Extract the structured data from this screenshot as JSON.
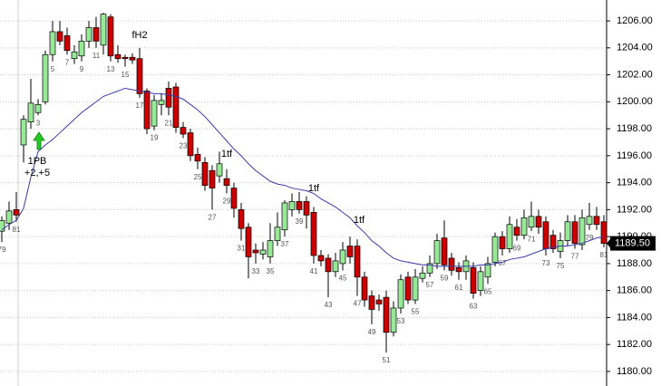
{
  "chart_data": {
    "type": "candlestick",
    "categories": [
      "79",
      null,
      "81",
      null,
      null,
      "3",
      null,
      "5",
      null,
      "7",
      null,
      "9",
      null,
      "11",
      null,
      "13",
      null,
      "15",
      null,
      "17",
      null,
      "19",
      null,
      "21",
      null,
      "23",
      null,
      "25",
      null,
      "27",
      null,
      "29",
      null,
      "31",
      null,
      "33",
      null,
      "35",
      null,
      "37",
      null,
      "39",
      null,
      "41",
      null,
      "43",
      null,
      "45",
      null,
      "47",
      null,
      "49",
      null,
      "51",
      null,
      "53",
      null,
      "55",
      null,
      "57",
      null,
      "59",
      null,
      "61",
      null,
      "63",
      null,
      "65",
      null,
      "67",
      null,
      "69",
      null,
      "71",
      null,
      "73",
      null,
      "75",
      null,
      "77",
      null,
      "79",
      null,
      "81"
    ],
    "open": [
      1190.4,
      1191.0,
      1192.0,
      1196.8,
      1198.5,
      1199.2,
      1200.0,
      1203.5,
      1205.2,
      1204.9,
      1203.2,
      1203.4,
      1204.5,
      1205.5,
      1204.2,
      1206.3,
      1203.5,
      1203.3,
      1203.3,
      1203.2,
      1200.8,
      1198.2,
      1199.8,
      1201.0,
      1201.1,
      1198.1,
      1197.7,
      1196.1,
      1195.5,
      1194.9,
      1194.5,
      1194.3,
      1193.6,
      1192.0,
      1190.7,
      1189.0,
      1188.7,
      1188.5,
      1189.7,
      1190.5,
      1192.0,
      1192.6,
      1192.6,
      1191.8,
      1188.6,
      1188.4,
      1187.4,
      1188.0,
      1189.3,
      1189.3,
      1187.0,
      1185.6,
      1185.3,
      1185.5,
      1182.9,
      1184.7,
      1187.0,
      1185.3,
      1186.9,
      1187.3,
      1188.0,
      1189.9,
      1188.4,
      1187.7,
      1187.4,
      1187.7,
      1186.0,
      1187.0,
      1188.1,
      1190.0,
      1189.1,
      1190.7,
      1190.1,
      1190.7,
      1191.5,
      1191.1,
      1190.1,
      1188.9,
      1189.7,
      1191.1,
      1189.4,
      1190.9,
      1191.5,
      1191.1
    ],
    "high": [
      1191.5,
      1192.6,
      1193.3,
      1199.0,
      1201.7,
      1200.2,
      1203.8,
      1206.0,
      1206.0,
      1205.5,
      1204.2,
      1205.0,
      1206.0,
      1206.3,
      1206.6,
      1206.5,
      1204.2,
      1203.5,
      1203.6,
      1204.0,
      1201.0,
      1200.5,
      1200.6,
      1201.5,
      1201.4,
      1198.5,
      1198.0,
      1196.6,
      1195.9,
      1195.3,
      1196.3,
      1195.0,
      1194.0,
      1192.5,
      1191.0,
      1189.5,
      1189.6,
      1191.0,
      1191.8,
      1192.7,
      1193.2,
      1193.3,
      1193.0,
      1192.2,
      1189.0,
      1188.7,
      1188.8,
      1189.6,
      1190.0,
      1189.8,
      1187.4,
      1186.0,
      1185.7,
      1186.0,
      1185.2,
      1187.2,
      1187.4,
      1187.6,
      1187.8,
      1188.6,
      1190.2,
      1191.2,
      1188.8,
      1188.1,
      1188.6,
      1188.1,
      1187.8,
      1188.5,
      1190.3,
      1190.4,
      1191.5,
      1191.3,
      1192.0,
      1192.6,
      1192.0,
      1191.5,
      1190.5,
      1190.3,
      1191.6,
      1191.6,
      1192.0,
      1192.5,
      1192.2,
      1191.6
    ],
    "low": [
      1189.6,
      1190.5,
      1191.1,
      1195.5,
      1198.0,
      1199.0,
      1199.8,
      1203.0,
      1204.2,
      1203.5,
      1202.8,
      1203.0,
      1204.0,
      1204.0,
      1203.5,
      1203.0,
      1202.9,
      1202.6,
      1202.8,
      1200.3,
      1197.6,
      1197.9,
      1199.0,
      1199.0,
      1197.7,
      1197.3,
      1195.6,
      1195.0,
      1193.4,
      1192.0,
      1194.0,
      1193.2,
      1191.4,
      1189.7,
      1186.9,
      1188.0,
      1188.3,
      1188.0,
      1189.3,
      1190.0,
      1191.5,
      1191.7,
      1190.6,
      1188.0,
      1187.8,
      1185.5,
      1187.0,
      1187.5,
      1188.0,
      1185.6,
      1184.8,
      1183.5,
      1184.5,
      1181.4,
      1182.6,
      1184.3,
      1185.0,
      1185.0,
      1186.6,
      1187.0,
      1187.6,
      1187.5,
      1187.1,
      1186.8,
      1186.8,
      1185.4,
      1185.6,
      1186.5,
      1187.8,
      1188.6,
      1188.8,
      1189.7,
      1189.8,
      1190.4,
      1190.2,
      1188.6,
      1188.8,
      1188.4,
      1189.3,
      1189.1,
      1189.0,
      1190.5,
      1190.5,
      1189.2
    ],
    "close": [
      1191.2,
      1191.9,
      1191.6,
      1198.7,
      1199.9,
      1199.8,
      1203.5,
      1205.2,
      1204.5,
      1203.8,
      1203.7,
      1204.5,
      1205.5,
      1204.5,
      1206.5,
      1203.4,
      1203.2,
      1203.2,
      1203.1,
      1200.6,
      1198.0,
      1200.1,
      1200.1,
      1199.6,
      1198.1,
      1197.6,
      1196.0,
      1195.6,
      1193.8,
      1193.6,
      1195.4,
      1193.8,
      1192.1,
      1190.6,
      1188.5,
      1188.8,
      1189.0,
      1189.7,
      1190.7,
      1192.5,
      1192.6,
      1192.0,
      1191.6,
      1188.6,
      1188.2,
      1187.4,
      1188.2,
      1189.0,
      1188.5,
      1187.0,
      1185.3,
      1184.6,
      1185.0,
      1182.9,
      1184.7,
      1186.8,
      1185.3,
      1187.0,
      1187.3,
      1188.0,
      1189.7,
      1187.9,
      1187.5,
      1187.4,
      1188.2,
      1185.8,
      1187.4,
      1188.0,
      1190.0,
      1189.1,
      1190.9,
      1190.1,
      1191.4,
      1191.5,
      1190.7,
      1189.1,
      1189.1,
      1189.7,
      1191.1,
      1189.5,
      1191.4,
      1191.5,
      1190.9,
      1189.5
    ],
    "up_color": "#98e898",
    "down_color": "#cc0000",
    "moving_average": {
      "color": "#3a3aa8",
      "values": [
        1190.5,
        1190.9,
        1191.2,
        1192.1,
        1194.4,
        1196.3,
        1196.8,
        1197.2,
        1197.7,
        1198.2,
        1198.7,
        1199.2,
        1199.6,
        1200.0,
        1200.4,
        1200.6,
        1200.8,
        1201.0,
        1200.9,
        1200.8,
        1200.7,
        1200.6,
        1200.6,
        1200.5,
        1200.4,
        1200.2,
        1199.8,
        1199.4,
        1198.9,
        1198.3,
        1197.7,
        1197.1,
        1196.5,
        1196.0,
        1195.4,
        1194.9,
        1194.5,
        1194.1,
        1193.9,
        1193.8,
        1193.6,
        1193.5,
        1193.4,
        1193.2,
        1192.8,
        1192.5,
        1192.2,
        1191.8,
        1191.4,
        1190.8,
        1190.3,
        1189.7,
        1189.3,
        1188.8,
        1188.4,
        1188.2,
        1188.1,
        1188.0,
        1187.9,
        1187.9,
        1187.8,
        1187.8,
        1187.8,
        1187.8,
        1187.8,
        1187.8,
        1187.9,
        1187.9,
        1188.0,
        1188.1,
        1188.3,
        1188.4,
        1188.5,
        1188.7,
        1188.9,
        1189.1,
        1189.2,
        1189.3,
        1189.3,
        1189.4,
        1189.5,
        1189.7,
        1189.9,
        1190.0
      ]
    },
    "annotations": [
      "fH2",
      "1PB",
      "+2,+5",
      "1tf",
      "1tf",
      "1tf"
    ],
    "last_price": {
      "value": 1189.5,
      "label": "1189.50"
    },
    "ylim": [
      1178.92,
      1207.55
    ],
    "yticks": [
      {
        "value": 1180,
        "label": "1180.00"
      },
      {
        "value": 1182,
        "label": "1182.00"
      },
      {
        "value": 1184,
        "label": "1184.00"
      },
      {
        "value": 1186,
        "label": "1186.00"
      },
      {
        "value": 1188,
        "label": "1188.00"
      },
      {
        "value": 1190,
        "label": "1190.00"
      },
      {
        "value": 1192,
        "label": "1192.00"
      },
      {
        "value": 1194,
        "label": "1194.00"
      },
      {
        "value": 1196,
        "label": "1196.00"
      },
      {
        "value": 1198,
        "label": "1198.00"
      },
      {
        "value": 1200,
        "label": "1200.00"
      },
      {
        "value": 1202,
        "label": "1202.00"
      },
      {
        "value": 1204,
        "label": "1204.00"
      },
      {
        "value": 1206,
        "label": "1206.00"
      }
    ],
    "grid": true
  }
}
